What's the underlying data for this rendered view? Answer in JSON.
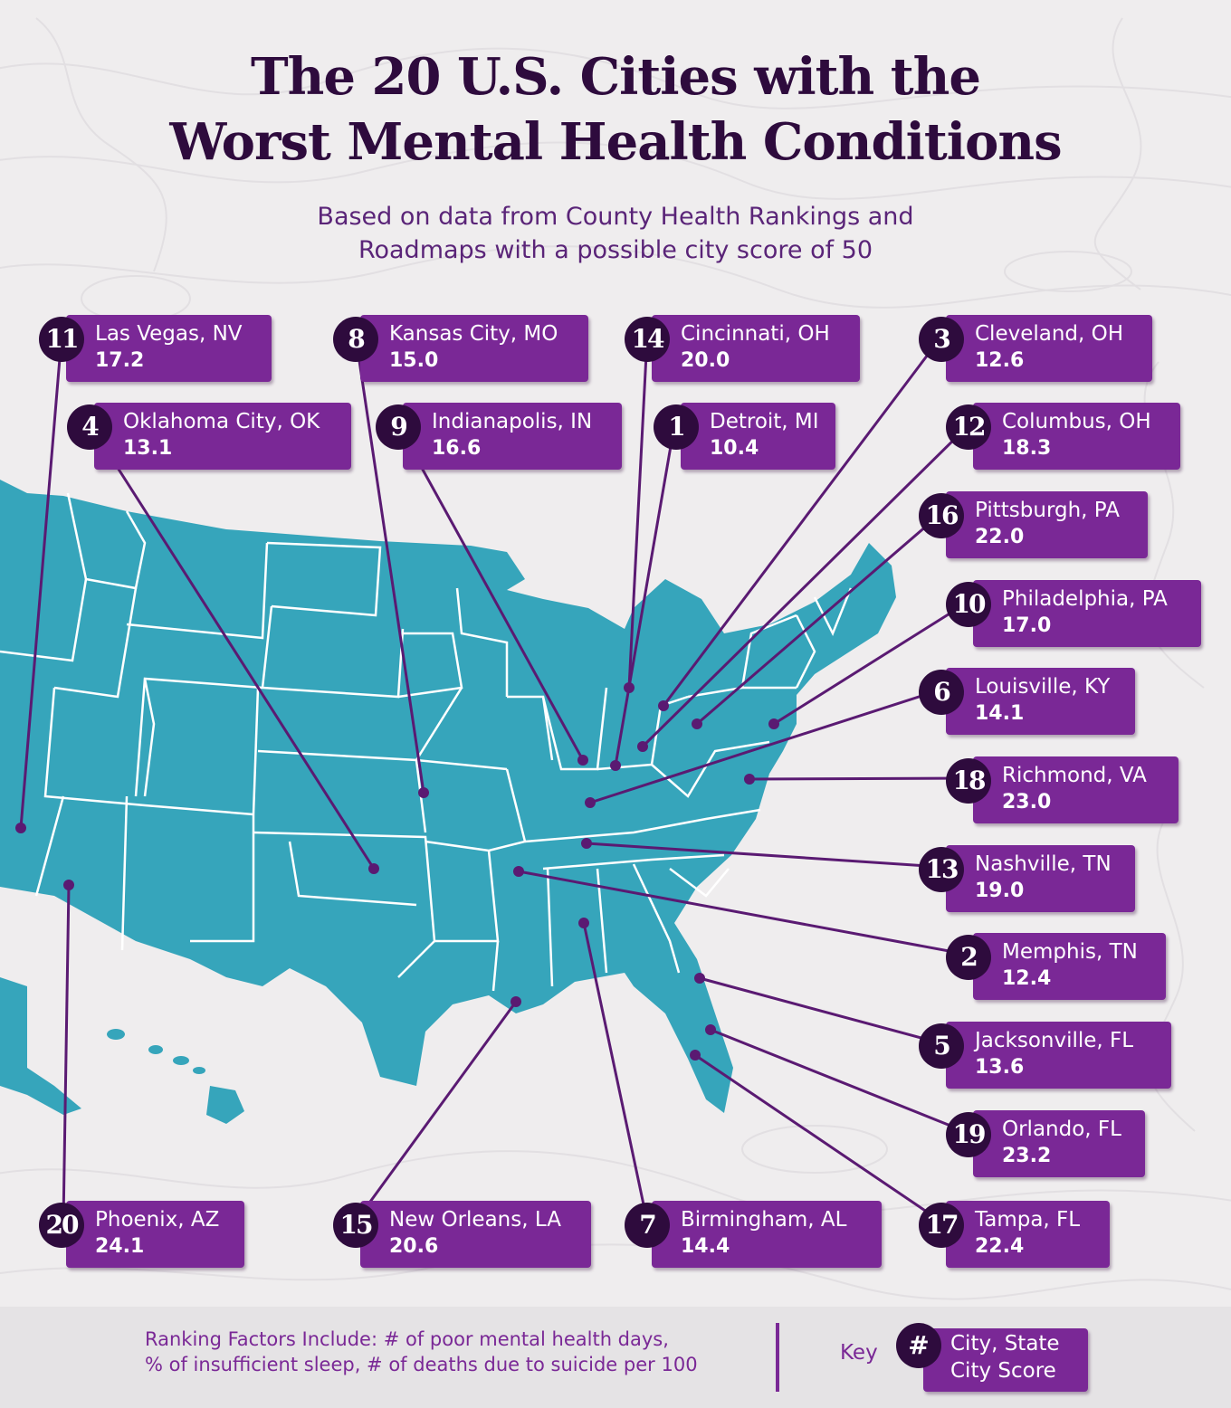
{
  "title": {
    "line1": "The 20 U.S. Cities with the",
    "line2": "Worst Mental Health Conditions"
  },
  "subtitle": {
    "line1": "Based on data from County Health Rankings and",
    "line2": "Roadmaps with a possible city score of 50"
  },
  "colors": {
    "background": "#efedee",
    "map": "#36a5bb",
    "card": "#7a2896",
    "badge": "#2e0b3d",
    "title": "#2e0b3d"
  },
  "cities": [
    {
      "rank": "1",
      "city": "Detroit, MI",
      "score": "10.4"
    },
    {
      "rank": "2",
      "city": "Memphis, TN",
      "score": "12.4"
    },
    {
      "rank": "3",
      "city": "Cleveland, OH",
      "score": "12.6"
    },
    {
      "rank": "4",
      "city": "Oklahoma City, OK",
      "score": "13.1"
    },
    {
      "rank": "5",
      "city": "Jacksonville, FL",
      "score": "13.6"
    },
    {
      "rank": "6",
      "city": "Louisville, KY",
      "score": "14.1"
    },
    {
      "rank": "7",
      "city": "Birmingham, AL",
      "score": "14.4"
    },
    {
      "rank": "8",
      "city": "Kansas City, MO",
      "score": "15.0"
    },
    {
      "rank": "9",
      "city": "Indianapolis, IN",
      "score": "16.6"
    },
    {
      "rank": "10",
      "city": "Philadelphia, PA",
      "score": "17.0"
    },
    {
      "rank": "11",
      "city": "Las Vegas, NV",
      "score": "17.2"
    },
    {
      "rank": "12",
      "city": "Columbus, OH",
      "score": "18.3"
    },
    {
      "rank": "13",
      "city": "Nashville, TN",
      "score": "19.0"
    },
    {
      "rank": "14",
      "city": "Cincinnati, OH",
      "score": "20.0"
    },
    {
      "rank": "15",
      "city": "New Orleans, LA",
      "score": "20.6"
    },
    {
      "rank": "16",
      "city": "Pittsburgh, PA",
      "score": "22.0"
    },
    {
      "rank": "17",
      "city": "Tampa, FL",
      "score": "22.4"
    },
    {
      "rank": "18",
      "city": "Richmond, VA",
      "score": "23.0"
    },
    {
      "rank": "19",
      "city": "Orlando, FL",
      "score": "23.2"
    },
    {
      "rank": "20",
      "city": "Phoenix, AZ",
      "score": "24.1"
    }
  ],
  "footer": {
    "factors_line1": "Ranking Factors Include: # of poor mental health days,",
    "factors_line2": "% of insufficient sleep, # of deaths due to suicide per 100",
    "key_label": "Key",
    "key_badge": "#",
    "key_line1": "City, State",
    "key_line2": "City Score"
  }
}
